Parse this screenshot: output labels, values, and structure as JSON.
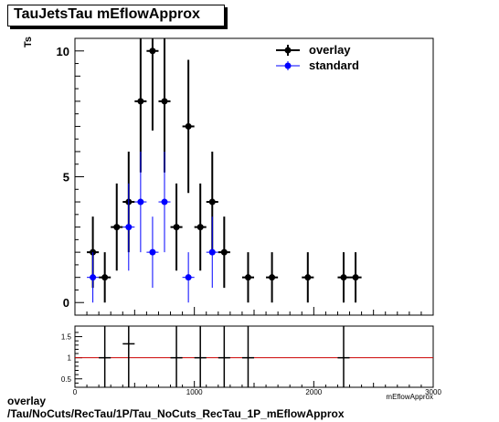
{
  "title": "TauJetsTau mEflowApprox",
  "footer": {
    "line1": "overlay",
    "line2": "/Tau/NoCuts/RecTau/1P/Tau_NoCuts_RecTau_1P_mEflowApprox"
  },
  "colors": {
    "overlay": "#000000",
    "standard": "#0000ff",
    "ratio_line": "#cc0000"
  },
  "chart_data": [
    {
      "type": "scatter",
      "ylabel": "Ts",
      "xlim": [
        0,
        3000
      ],
      "ylim": [
        -0.5,
        10.5
      ],
      "yticks": [
        0,
        5,
        10
      ],
      "legend": "top-right",
      "series": [
        {
          "name": "overlay",
          "x": [
            150,
            250,
            350,
            450,
            550,
            650,
            750,
            850,
            950,
            1050,
            1150,
            1250,
            1450,
            1650,
            1950,
            2250,
            2350
          ],
          "y": [
            2,
            1,
            3,
            4,
            8,
            10,
            8,
            3,
            7,
            3,
            4,
            2,
            1,
            1,
            1,
            1,
            1
          ],
          "xerr": 50
        },
        {
          "name": "standard",
          "x": [
            150,
            450,
            550,
            650,
            750,
            950,
            1150
          ],
          "y": [
            1,
            3,
            4,
            2,
            4,
            1,
            2
          ],
          "xerr": 50
        }
      ]
    },
    {
      "type": "scatter",
      "xlabel": "mEflowApprox",
      "xlim": [
        0,
        3000
      ],
      "ylim": [
        0.3,
        1.75
      ],
      "yticks": [
        0.5,
        1,
        1.5
      ],
      "xticks": [
        0,
        1000,
        2000,
        3000
      ],
      "reference_line": 1,
      "series": [
        {
          "name": "ratio",
          "x": [
            250,
            450,
            850,
            1050,
            1250,
            1450,
            2250
          ],
          "y": [
            1,
            1.33,
            1,
            1,
            1,
            1,
            1
          ],
          "xerr": 50
        }
      ]
    }
  ]
}
